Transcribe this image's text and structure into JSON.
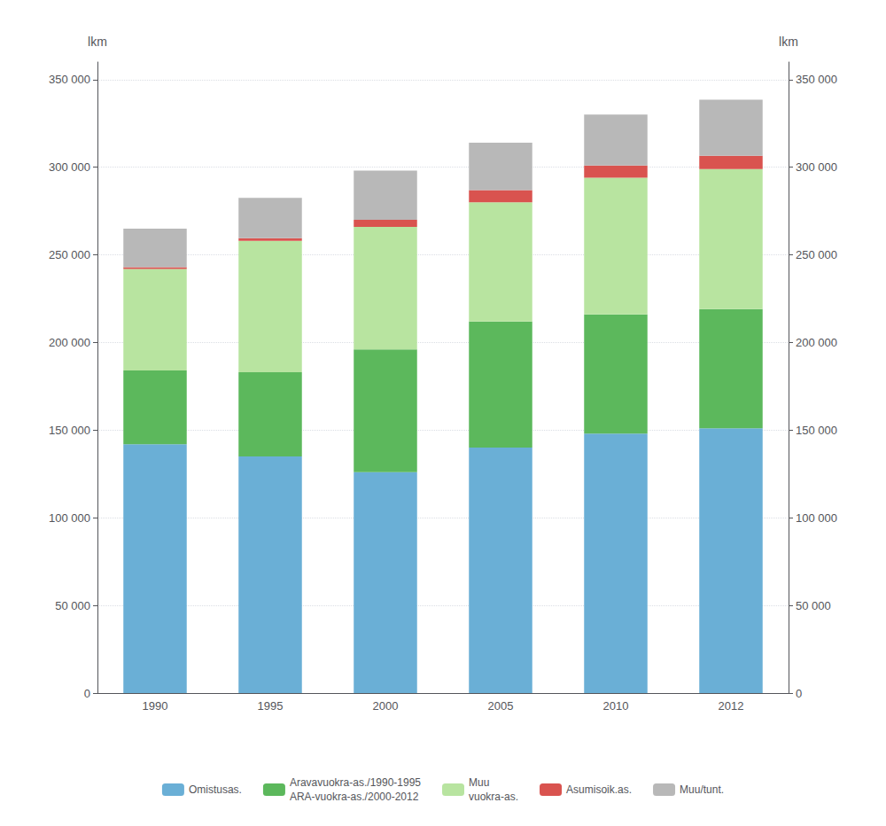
{
  "chart_data": {
    "type": "bar",
    "stacked": true,
    "categories": [
      "1990",
      "1995",
      "2000",
      "2005",
      "2010",
      "2012"
    ],
    "series": [
      {
        "name": "Omistusas.",
        "color": "#6aafd6",
        "values": [
          142000,
          135000,
          126000,
          140000,
          148000,
          151000
        ]
      },
      {
        "name": "Aravavuokra-as./1990-1995\nARA-vuokra-as./2000-2012",
        "color": "#5cb85c",
        "values": [
          42000,
          48000,
          70000,
          72000,
          68000,
          68000
        ]
      },
      {
        "name": "Muu\nvuokra-as.",
        "color": "#b8e4a0",
        "values": [
          58000,
          75000,
          70000,
          68000,
          78000,
          80000
        ]
      },
      {
        "name": "Asumisoik.as.",
        "color": "#d9534f",
        "values": [
          1000,
          1500,
          4000,
          7000,
          7000,
          7500
        ]
      },
      {
        "name": "Muu/tunt.",
        "color": "#b8b8b8",
        "values": [
          22000,
          23000,
          28000,
          27000,
          29000,
          32000
        ]
      }
    ],
    "ylim": [
      0,
      360000
    ],
    "yticks": [
      0,
      {
        "value": 50000,
        "label": "50 000"
      },
      {
        "value": 100000,
        "label": "100 000"
      },
      {
        "value": 150000,
        "label": "150 000"
      },
      {
        "value": 200000,
        "label": "200 000"
      },
      {
        "value": 250000,
        "label": "250 000"
      },
      {
        "value": 300000,
        "label": "300 000"
      },
      {
        "value": 350000,
        "label": "350 000"
      }
    ],
    "y2lim": [
      0,
      360000
    ],
    "y2ticks": [
      0,
      {
        "value": 50000,
        "label": "50 000"
      },
      {
        "value": 100000,
        "label": "100 000"
      },
      {
        "value": 150000,
        "label": "150 000"
      },
      {
        "value": 200000,
        "label": "200 000"
      },
      {
        "value": 250000,
        "label": "250 000"
      },
      {
        "value": 300000,
        "label": "300 000"
      },
      {
        "value": 350000,
        "label": "350 000"
      }
    ],
    "ylabel": "lkm",
    "y2label": "lkm",
    "grid": true,
    "legend": "bottom"
  }
}
